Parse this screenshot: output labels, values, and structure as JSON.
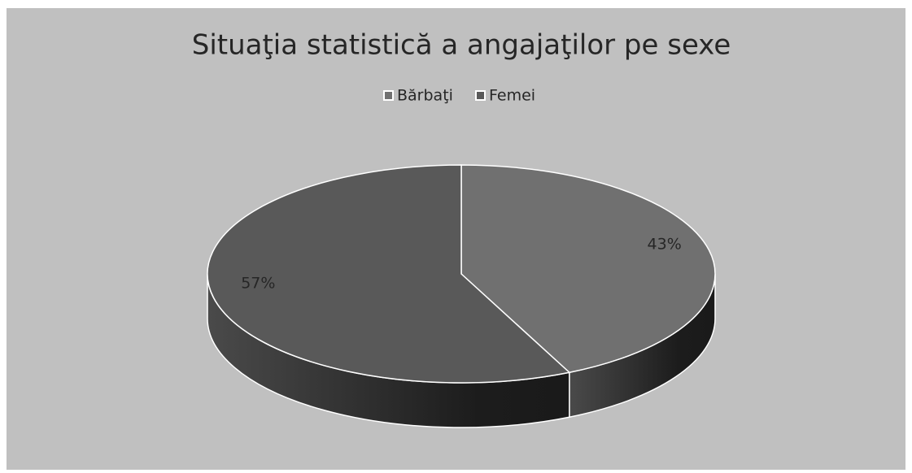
{
  "chart_data": {
    "type": "pie",
    "title": "Situaţia statistică a angajaţilor pe sexe",
    "categories": [
      "Bărbaţi",
      "Femei"
    ],
    "values": [
      43,
      57
    ],
    "value_labels": [
      "43%",
      "57%"
    ],
    "colors": [
      "#707070",
      "#595959"
    ],
    "legend": "top"
  }
}
